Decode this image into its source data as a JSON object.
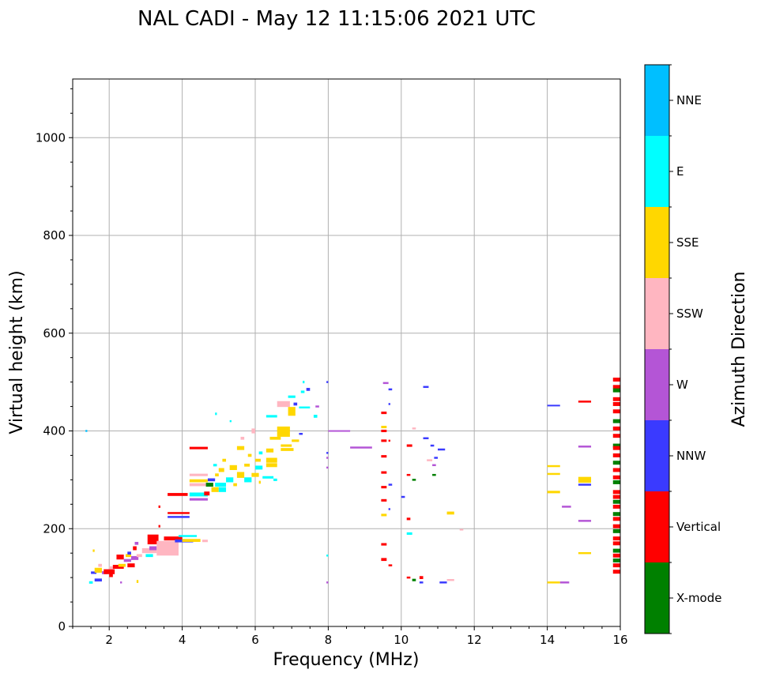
{
  "chart_data": {
    "type": "scatter",
    "title": "NAL CADI - May 12 11:15:06 2021 UTC",
    "xlabel": "Frequency (MHz)",
    "ylabel": "Virtual height (km)",
    "xlim": [
      1,
      16
    ],
    "ylim": [
      0,
      1120
    ],
    "xticks": [
      2,
      4,
      6,
      8,
      10,
      12,
      14,
      16
    ],
    "yticks": [
      0,
      200,
      400,
      600,
      800,
      1000
    ],
    "grid": true,
    "colorbar": {
      "label": "Azimuth Direction",
      "categories": [
        {
          "name": "X-mode",
          "color": "#008000"
        },
        {
          "name": "Vertical",
          "color": "#ff0000"
        },
        {
          "name": "NNW",
          "color": "#3a3aff"
        },
        {
          "name": "W",
          "color": "#b455d6"
        },
        {
          "name": "SSW",
          "color": "#ffb6c1"
        },
        {
          "name": "SSE",
          "color": "#ffd700"
        },
        {
          "name": "E",
          "color": "#00ffff"
        },
        {
          "name": "NNE",
          "color": "#00bfff"
        }
      ]
    },
    "series_note": "Each echo: [frequency MHz, virtual height km, width MHz, thickness km, azimuth category]",
    "echoes": [
      [
        1.35,
        400,
        0.05,
        4,
        "NNE"
      ],
      [
        1.45,
        90,
        0.1,
        5,
        "E"
      ],
      [
        1.5,
        110,
        0.15,
        5,
        "NNW"
      ],
      [
        1.55,
        155,
        0.05,
        5,
        "SSE"
      ],
      [
        1.6,
        95,
        0.2,
        6,
        "NNW"
      ],
      [
        1.6,
        115,
        0.2,
        10,
        "SSE"
      ],
      [
        1.7,
        125,
        0.1,
        6,
        "SSW"
      ],
      [
        1.8,
        110,
        0.15,
        6,
        "W"
      ],
      [
        1.85,
        112,
        0.3,
        10,
        "Vertical"
      ],
      [
        2.0,
        105,
        0.1,
        8,
        "Vertical"
      ],
      [
        2.0,
        120,
        0.1,
        6,
        "SSW"
      ],
      [
        2.1,
        122,
        0.3,
        8,
        "Vertical"
      ],
      [
        2.2,
        142,
        0.2,
        10,
        "Vertical"
      ],
      [
        2.25,
        125,
        0.2,
        6,
        "SSE"
      ],
      [
        2.3,
        90,
        0.05,
        4,
        "W"
      ],
      [
        2.4,
        135,
        0.2,
        6,
        "W"
      ],
      [
        2.45,
        145,
        0.15,
        6,
        "SSE"
      ],
      [
        2.5,
        125,
        0.2,
        8,
        "Vertical"
      ],
      [
        2.5,
        150,
        0.1,
        6,
        "NNW"
      ],
      [
        2.6,
        140,
        0.2,
        8,
        "W"
      ],
      [
        2.65,
        160,
        0.1,
        8,
        "Vertical"
      ],
      [
        2.7,
        170,
        0.1,
        6,
        "W"
      ],
      [
        2.75,
        92,
        0.05,
        6,
        "SSE"
      ],
      [
        2.75,
        145,
        0.15,
        6,
        "SSW"
      ],
      [
        2.9,
        155,
        0.4,
        10,
        "SSW"
      ],
      [
        3.0,
        145,
        0.2,
        6,
        "E"
      ],
      [
        3.05,
        178,
        0.3,
        20,
        "Vertical"
      ],
      [
        3.1,
        160,
        0.2,
        8,
        "W"
      ],
      [
        3.3,
        160,
        0.6,
        30,
        "SSW"
      ],
      [
        3.35,
        205,
        0.05,
        5,
        "Vertical"
      ],
      [
        3.35,
        245,
        0.05,
        5,
        "Vertical"
      ],
      [
        3.5,
        180,
        0.5,
        8,
        "Vertical"
      ],
      [
        3.8,
        175,
        0.5,
        6,
        "NNW"
      ],
      [
        3.9,
        185,
        0.5,
        4,
        "E"
      ],
      [
        3.6,
        224,
        0.6,
        4,
        "NNW"
      ],
      [
        3.6,
        232,
        0.6,
        4,
        "Vertical"
      ],
      [
        3.6,
        270,
        0.55,
        6,
        "Vertical"
      ],
      [
        4.0,
        176,
        0.5,
        6,
        "SSE"
      ],
      [
        4.2,
        260,
        0.5,
        5,
        "W"
      ],
      [
        4.2,
        270,
        0.5,
        8,
        "E"
      ],
      [
        4.2,
        290,
        0.5,
        6,
        "SSW"
      ],
      [
        4.2,
        298,
        0.5,
        6,
        "SSE"
      ],
      [
        4.2,
        310,
        0.5,
        5,
        "SSW"
      ],
      [
        4.2,
        365,
        0.5,
        5,
        "Vertical"
      ],
      [
        4.55,
        175,
        0.15,
        5,
        "SSW"
      ],
      [
        4.6,
        272,
        0.15,
        8,
        "Vertical"
      ],
      [
        4.65,
        290,
        0.2,
        8,
        "X-mode"
      ],
      [
        4.7,
        300,
        0.2,
        6,
        "NNW"
      ],
      [
        4.8,
        280,
        0.2,
        10,
        "SSE"
      ],
      [
        4.9,
        290,
        0.3,
        8,
        "E"
      ],
      [
        4.9,
        310,
        0.1,
        6,
        "SSE"
      ],
      [
        4.85,
        330,
        0.1,
        5,
        "E"
      ],
      [
        4.9,
        435,
        0.05,
        5,
        "E"
      ],
      [
        5.0,
        280,
        0.2,
        10,
        "E"
      ],
      [
        5.0,
        320,
        0.15,
        8,
        "SSE"
      ],
      [
        5.1,
        340,
        0.1,
        6,
        "SSE"
      ],
      [
        5.2,
        300,
        0.2,
        10,
        "E"
      ],
      [
        5.3,
        325,
        0.2,
        10,
        "SSE"
      ],
      [
        5.3,
        420,
        0.05,
        4,
        "E"
      ],
      [
        5.4,
        290,
        0.1,
        6,
        "SSE"
      ],
      [
        5.5,
        310,
        0.2,
        12,
        "SSE"
      ],
      [
        5.5,
        365,
        0.2,
        8,
        "SSE"
      ],
      [
        5.6,
        385,
        0.1,
        6,
        "SSW"
      ],
      [
        5.7,
        300,
        0.2,
        10,
        "E"
      ],
      [
        5.7,
        330,
        0.15,
        6,
        "SSE"
      ],
      [
        5.8,
        350,
        0.1,
        6,
        "SSE"
      ],
      [
        5.9,
        310,
        0.2,
        8,
        "SSE"
      ],
      [
        5.9,
        400,
        0.1,
        10,
        "SSW"
      ],
      [
        6.0,
        325,
        0.2,
        8,
        "E"
      ],
      [
        6.0,
        340,
        0.15,
        6,
        "SSE"
      ],
      [
        6.1,
        295,
        0.05,
        6,
        "SSE"
      ],
      [
        6.1,
        355,
        0.1,
        6,
        "E"
      ],
      [
        6.2,
        305,
        0.3,
        5,
        "E"
      ],
      [
        6.3,
        330,
        0.3,
        8,
        "SSE"
      ],
      [
        6.3,
        340,
        0.3,
        10,
        "SSE"
      ],
      [
        6.3,
        360,
        0.2,
        8,
        "SSE"
      ],
      [
        6.3,
        430,
        0.3,
        5,
        "E"
      ],
      [
        6.4,
        385,
        0.3,
        6,
        "SSE"
      ],
      [
        6.5,
        300,
        0.1,
        5,
        "E"
      ],
      [
        6.6,
        395,
        0.35,
        14,
        "SSE"
      ],
      [
        6.6,
        405,
        0.35,
        8,
        "SSE"
      ],
      [
        6.6,
        455,
        0.35,
        12,
        "SSW"
      ],
      [
        6.7,
        362,
        0.35,
        6,
        "SSE"
      ],
      [
        6.7,
        370,
        0.3,
        5,
        "SSE"
      ],
      [
        6.9,
        440,
        0.2,
        18,
        "SSE"
      ],
      [
        6.9,
        470,
        0.2,
        5,
        "E"
      ],
      [
        7.0,
        380,
        0.2,
        5,
        "SSE"
      ],
      [
        7.05,
        455,
        0.1,
        6,
        "NNW"
      ],
      [
        7.2,
        394,
        0.1,
        4,
        "NNW"
      ],
      [
        7.2,
        448,
        0.3,
        4,
        "E"
      ],
      [
        7.25,
        480,
        0.1,
        5,
        "E"
      ],
      [
        7.3,
        500,
        0.05,
        5,
        "E"
      ],
      [
        7.4,
        485,
        0.1,
        6,
        "NNW"
      ],
      [
        7.6,
        430,
        0.1,
        6,
        "E"
      ],
      [
        7.65,
        450,
        0.1,
        4,
        "W"
      ],
      [
        7.95,
        500,
        0.05,
        4,
        "NNW"
      ],
      [
        7.95,
        355,
        0.05,
        4,
        "NNW"
      ],
      [
        7.95,
        345,
        0.05,
        4,
        "W"
      ],
      [
        7.95,
        325,
        0.05,
        4,
        "W"
      ],
      [
        7.95,
        145,
        0.05,
        4,
        "E"
      ],
      [
        7.95,
        90,
        0.05,
        4,
        "W"
      ],
      [
        8.0,
        400,
        0.6,
        3,
        "W"
      ],
      [
        8.6,
        366,
        0.6,
        4,
        "W"
      ],
      [
        9.5,
        498,
        0.15,
        4,
        "W"
      ],
      [
        9.45,
        437,
        0.15,
        5,
        "Vertical"
      ],
      [
        9.45,
        408,
        0.15,
        5,
        "SSE"
      ],
      [
        9.45,
        400,
        0.15,
        5,
        "Vertical"
      ],
      [
        9.45,
        380,
        0.15,
        5,
        "Vertical"
      ],
      [
        9.45,
        348,
        0.15,
        5,
        "Vertical"
      ],
      [
        9.45,
        315,
        0.15,
        5,
        "Vertical"
      ],
      [
        9.45,
        285,
        0.15,
        5,
        "Vertical"
      ],
      [
        9.45,
        258,
        0.15,
        5,
        "Vertical"
      ],
      [
        9.45,
        228,
        0.15,
        5,
        "SSE"
      ],
      [
        9.45,
        168,
        0.15,
        5,
        "Vertical"
      ],
      [
        9.45,
        137,
        0.15,
        6,
        "Vertical"
      ],
      [
        9.65,
        485,
        0.1,
        4,
        "NNW"
      ],
      [
        9.65,
        455,
        0.05,
        4,
        "NNW"
      ],
      [
        9.65,
        380,
        0.05,
        4,
        "Vertical"
      ],
      [
        9.65,
        290,
        0.1,
        4,
        "NNW"
      ],
      [
        9.65,
        240,
        0.05,
        4,
        "NNW"
      ],
      [
        9.65,
        125,
        0.1,
        4,
        "Vertical"
      ],
      [
        10.0,
        265,
        0.1,
        4,
        "NNW"
      ],
      [
        10.15,
        370,
        0.15,
        5,
        "Vertical"
      ],
      [
        10.15,
        310,
        0.1,
        4,
        "Vertical"
      ],
      [
        10.15,
        220,
        0.1,
        5,
        "Vertical"
      ],
      [
        10.15,
        190,
        0.15,
        5,
        "E"
      ],
      [
        10.15,
        100,
        0.1,
        4,
        "Vertical"
      ],
      [
        10.3,
        405,
        0.1,
        4,
        "SSW"
      ],
      [
        10.3,
        300,
        0.1,
        4,
        "X-mode"
      ],
      [
        10.3,
        95,
        0.1,
        5,
        "X-mode"
      ],
      [
        10.5,
        100,
        0.1,
        6,
        "Vertical"
      ],
      [
        10.5,
        90,
        0.1,
        4,
        "NNW"
      ],
      [
        10.6,
        490,
        0.15,
        4,
        "NNW"
      ],
      [
        10.6,
        385,
        0.15,
        4,
        "NNW"
      ],
      [
        10.7,
        340,
        0.15,
        4,
        "SSW"
      ],
      [
        10.8,
        370,
        0.1,
        4,
        "NNW"
      ],
      [
        10.9,
        345,
        0.1,
        4,
        "NNW"
      ],
      [
        10.85,
        330,
        0.1,
        4,
        "W"
      ],
      [
        10.85,
        310,
        0.1,
        4,
        "X-mode"
      ],
      [
        11.0,
        362,
        0.2,
        4,
        "NNW"
      ],
      [
        11.05,
        90,
        0.2,
        4,
        "NNW"
      ],
      [
        11.25,
        232,
        0.2,
        6,
        "SSE"
      ],
      [
        11.25,
        95,
        0.2,
        4,
        "SSW"
      ],
      [
        11.6,
        198,
        0.1,
        3,
        "SSW"
      ],
      [
        14.0,
        452,
        0.35,
        3,
        "NNW"
      ],
      [
        14.0,
        328,
        0.35,
        4,
        "SSE"
      ],
      [
        14.0,
        312,
        0.35,
        4,
        "SSE"
      ],
      [
        14.0,
        275,
        0.35,
        5,
        "SSE"
      ],
      [
        14.0,
        90,
        0.35,
        4,
        "SSE"
      ],
      [
        14.35,
        90,
        0.25,
        4,
        "W"
      ],
      [
        14.4,
        245,
        0.25,
        4,
        "W"
      ],
      [
        14.85,
        460,
        0.35,
        4,
        "Vertical"
      ],
      [
        14.85,
        368,
        0.35,
        4,
        "W"
      ],
      [
        14.85,
        300,
        0.35,
        12,
        "SSE"
      ],
      [
        14.85,
        290,
        0.35,
        4,
        "NNW"
      ],
      [
        14.85,
        216,
        0.35,
        4,
        "W"
      ],
      [
        14.85,
        150,
        0.35,
        4,
        "SSE"
      ]
    ],
    "column_note": "Dense stacked echo column at the right edge: [frequency MHz, height km, category]",
    "column": [
      [
        15.8,
        505,
        "Vertical"
      ],
      [
        15.8,
        490,
        "Vertical"
      ],
      [
        15.8,
        483,
        "X-mode"
      ],
      [
        15.8,
        465,
        "Vertical"
      ],
      [
        15.8,
        455,
        "Vertical"
      ],
      [
        15.8,
        440,
        "Vertical"
      ],
      [
        15.8,
        420,
        "X-mode"
      ],
      [
        15.8,
        405,
        "Vertical"
      ],
      [
        15.8,
        390,
        "Vertical"
      ],
      [
        15.8,
        370,
        "X-mode"
      ],
      [
        15.8,
        365,
        "Vertical"
      ],
      [
        15.8,
        350,
        "Vertical"
      ],
      [
        15.8,
        335,
        "X-mode"
      ],
      [
        15.8,
        320,
        "Vertical"
      ],
      [
        15.8,
        305,
        "Vertical"
      ],
      [
        15.8,
        295,
        "X-mode"
      ],
      [
        15.8,
        275,
        "Vertical"
      ],
      [
        15.8,
        265,
        "Vertical"
      ],
      [
        15.8,
        255,
        "X-mode"
      ],
      [
        15.8,
        245,
        "Vertical"
      ],
      [
        15.8,
        230,
        "X-mode"
      ],
      [
        15.8,
        220,
        "Vertical"
      ],
      [
        15.8,
        205,
        "Vertical"
      ],
      [
        15.8,
        195,
        "X-mode"
      ],
      [
        15.8,
        180,
        "Vertical"
      ],
      [
        15.8,
        170,
        "Vertical"
      ],
      [
        15.8,
        155,
        "X-mode"
      ],
      [
        15.8,
        145,
        "Vertical"
      ],
      [
        15.8,
        135,
        "X-mode"
      ],
      [
        15.8,
        125,
        "Vertical"
      ],
      [
        15.8,
        112,
        "Vertical"
      ]
    ]
  }
}
